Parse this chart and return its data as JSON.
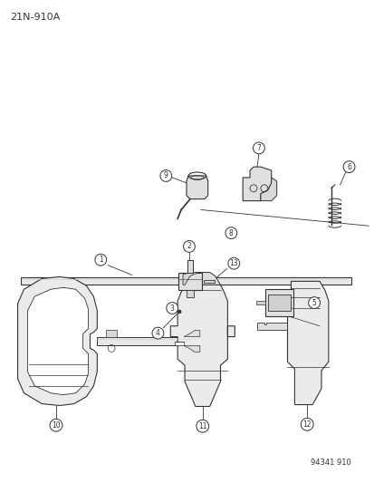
{
  "title": "21N-910A",
  "footer": "94341 910",
  "background_color": "#ffffff",
  "line_color": "#333333",
  "figsize": [
    4.14,
    5.33
  ],
  "dpi": 100
}
